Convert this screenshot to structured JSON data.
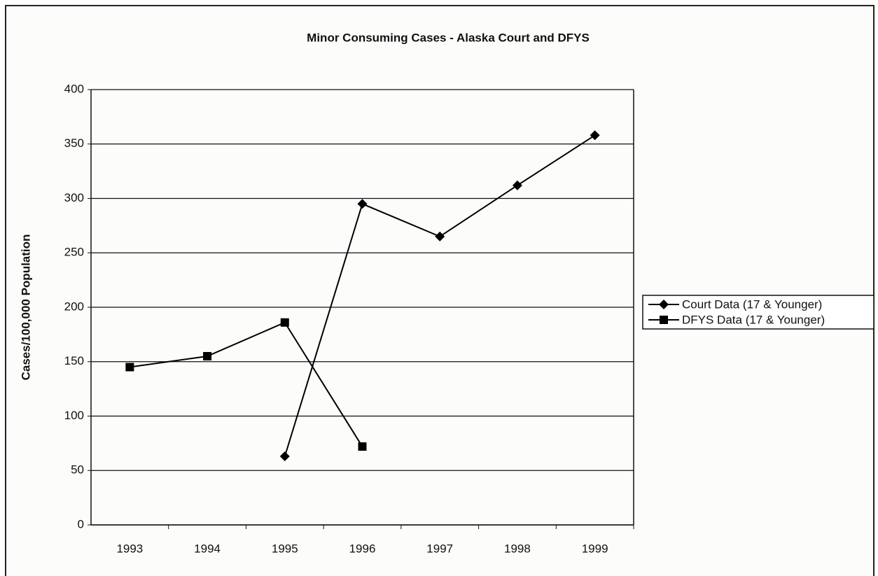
{
  "chart_data": {
    "type": "line",
    "title": "Minor Consuming Cases - Alaska Court and DFYS",
    "y_label": "Cases/100,000 Population",
    "categories": [
      "1993",
      "1994",
      "1995",
      "1996",
      "1997",
      "1998",
      "1999"
    ],
    "series": [
      {
        "name": "Court Data (17 & Younger)",
        "color": "#000000",
        "marker": "diamond",
        "values": [
          null,
          null,
          63,
          295,
          265,
          312,
          358
        ]
      },
      {
        "name": "DFYS Data (17 & Younger)",
        "color": "#000000",
        "marker": "square",
        "values": [
          145,
          155,
          186,
          72,
          null,
          null,
          null
        ]
      }
    ],
    "ylim": [
      0,
      400
    ],
    "yticks": [
      0,
      50,
      100,
      150,
      200,
      250,
      300,
      350,
      400
    ],
    "grid": true,
    "legend": "right"
  }
}
